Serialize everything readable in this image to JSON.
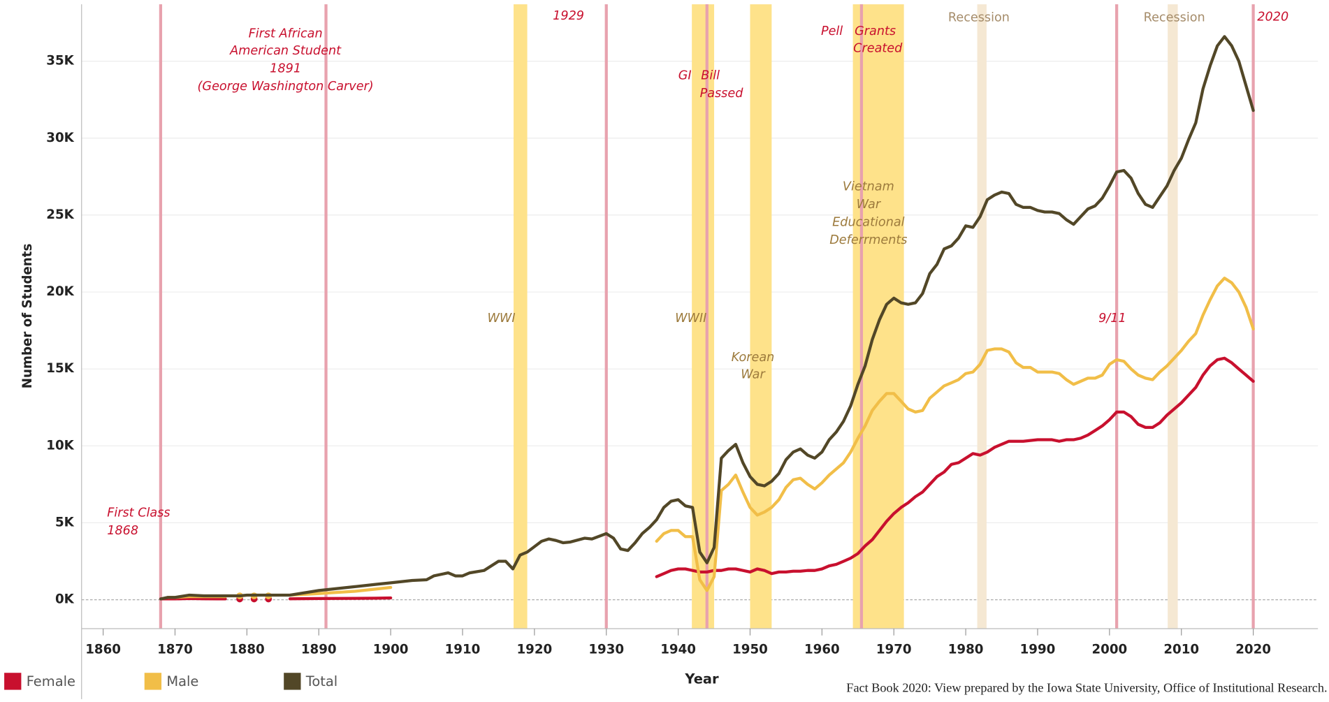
{
  "chart_data": {
    "type": "line",
    "y_label": "Number of Students",
    "x_label": "Year",
    "footer": "Fact Book 2020: View prepared by the Iowa State University, Office of Institutional Research.",
    "xlim": [
      1857,
      2029
    ],
    "xticks": [
      1860,
      1870,
      1880,
      1890,
      1900,
      1910,
      1920,
      1930,
      1940,
      1950,
      1960,
      1970,
      1980,
      1990,
      2000,
      2010,
      2020
    ],
    "ylim": [
      -1880,
      38700
    ],
    "yticks": [
      {
        "value": 0,
        "label": "0K"
      },
      {
        "value": 5000,
        "label": "5K"
      },
      {
        "value": 10000,
        "label": "10K"
      },
      {
        "value": 15000,
        "label": "15K"
      },
      {
        "value": 20000,
        "label": "20K"
      },
      {
        "value": 25000,
        "label": "25K"
      },
      {
        "value": 30000,
        "label": "30K"
      },
      {
        "value": 35000,
        "label": "35K"
      }
    ],
    "grid": true,
    "legend": "bottom-left",
    "x": [
      1868,
      1869,
      1870,
      1872,
      1874,
      1876,
      1877,
      1878,
      1879,
      1880,
      1881,
      1882,
      1883,
      1884,
      1885,
      1886,
      1890,
      1895,
      1898,
      1900,
      1903,
      1905,
      1906,
      1908,
      1909,
      1910,
      1911,
      1913,
      1915,
      1916,
      1917,
      1918,
      1919,
      1921,
      1922,
      1923,
      1924,
      1925,
      1927,
      1928,
      1930,
      1931,
      1932,
      1933,
      1934,
      1935,
      1936,
      1937,
      1938,
      1939,
      1940,
      1941,
      1942,
      1943,
      1944,
      1945,
      1946,
      1947,
      1948,
      1949,
      1950,
      1951,
      1952,
      1953,
      1954,
      1955,
      1956,
      1957,
      1958,
      1959,
      1960,
      1961,
      1962,
      1963,
      1964,
      1965,
      1966,
      1967,
      1968,
      1969,
      1970,
      1971,
      1972,
      1973,
      1974,
      1975,
      1976,
      1977,
      1978,
      1979,
      1980,
      1981,
      1982,
      1983,
      1984,
      1985,
      1986,
      1987,
      1988,
      1989,
      1990,
      1991,
      1992,
      1993,
      1994,
      1995,
      1996,
      1997,
      1998,
      1999,
      2000,
      2001,
      2002,
      2003,
      2004,
      2005,
      2006,
      2007,
      2008,
      2009,
      2010,
      2011,
      2012,
      2013,
      2014,
      2015,
      2016,
      2017,
      2018,
      2019,
      2020
    ],
    "series": [
      {
        "name": "Female",
        "color": "#c8102e",
        "values": [
          50,
          50,
          50,
          80,
          60,
          50,
          50,
          null,
          50,
          null,
          50,
          null,
          50,
          null,
          null,
          60,
          80,
          90,
          100,
          120,
          null,
          null,
          null,
          null,
          null,
          null,
          null,
          null,
          null,
          null,
          null,
          null,
          null,
          null,
          null,
          null,
          null,
          null,
          null,
          null,
          null,
          null,
          null,
          null,
          null,
          null,
          null,
          1500,
          1700,
          1900,
          2000,
          2000,
          1900,
          1800,
          1800,
          1900,
          1900,
          2000,
          2000,
          1900,
          1800,
          2000,
          1900,
          1700,
          1800,
          1800,
          1850,
          1850,
          1900,
          1900,
          2000,
          2200,
          2300,
          2500,
          2700,
          3000,
          3500,
          3900,
          4500,
          5100,
          5600,
          6000,
          6300,
          6700,
          7000,
          7500,
          8000,
          8300,
          8800,
          8900,
          9200,
          9500,
          9400,
          9600,
          9900,
          10100,
          10300,
          10300,
          10300,
          10350,
          10400,
          10400,
          10400,
          10300,
          10400,
          10400,
          10500,
          10700,
          11000,
          11300,
          11700,
          12200,
          12200,
          11900,
          11400,
          11200,
          11200,
          11500,
          12000,
          12400,
          12800,
          13300,
          13800,
          14600,
          15200,
          15600,
          15700,
          15400,
          15000,
          14600,
          14200
        ]
      },
      {
        "name": "Male",
        "color": "#f1be48",
        "values": [
          null,
          150,
          150,
          200,
          200,
          200,
          200,
          null,
          250,
          null,
          250,
          null,
          250,
          null,
          null,
          300,
          400,
          550,
          700,
          800,
          null,
          null,
          null,
          null,
          null,
          null,
          null,
          null,
          null,
          null,
          null,
          null,
          null,
          null,
          null,
          null,
          null,
          null,
          null,
          null,
          null,
          null,
          null,
          null,
          null,
          null,
          null,
          3800,
          4300,
          4500,
          4500,
          4100,
          4100,
          1300,
          600,
          1500,
          7100,
          7500,
          8100,
          7000,
          6000,
          5500,
          5700,
          6000,
          6500,
          7300,
          7800,
          7900,
          7500,
          7200,
          7600,
          8100,
          8500,
          8900,
          9600,
          10500,
          11300,
          12300,
          12900,
          13400,
          13400,
          12900,
          12400,
          12200,
          12300,
          13100,
          13500,
          13900,
          14100,
          14300,
          14700,
          14800,
          15300,
          16200,
          16300,
          16300,
          16100,
          15400,
          15100,
          15100,
          14800,
          14800,
          14800,
          14700,
          14300,
          14000,
          14200,
          14400,
          14400,
          14600,
          15300,
          15600,
          15500,
          15000,
          14600,
          14400,
          14300,
          14800,
          15200,
          15700,
          16200,
          16800,
          17300,
          18500,
          19500,
          20400,
          20900,
          20600,
          20000,
          19000,
          17600
        ]
      },
      {
        "name": "Total",
        "color": "#524727",
        "values": [
          50,
          150,
          150,
          300,
          250,
          250,
          250,
          250,
          250,
          300,
          300,
          300,
          300,
          300,
          300,
          300,
          600,
          850,
          1000,
          1100,
          1250,
          1300,
          1550,
          1750,
          1550,
          1550,
          1750,
          1900,
          2500,
          2500,
          2000,
          2900,
          3100,
          3800,
          3950,
          3850,
          3700,
          3750,
          4000,
          3950,
          4300,
          4000,
          3300,
          3200,
          3700,
          4300,
          4700,
          5200,
          6000,
          6400,
          6500,
          6100,
          6000,
          3100,
          2400,
          3400,
          9200,
          9700,
          10100,
          8900,
          8000,
          7500,
          7400,
          7700,
          8200,
          9100,
          9600,
          9800,
          9400,
          9200,
          9600,
          10400,
          10900,
          11600,
          12600,
          14000,
          15200,
          16900,
          18200,
          19200,
          19600,
          19300,
          19200,
          19300,
          19900,
          21200,
          21800,
          22800,
          23000,
          23500,
          24300,
          24200,
          24900,
          26000,
          26300,
          26500,
          26400,
          25700,
          25500,
          25500,
          25300,
          25200,
          25200,
          25100,
          24700,
          24400,
          24900,
          25400,
          25600,
          26100,
          26900,
          27800,
          27900,
          27400,
          26400,
          25700,
          25500,
          26200,
          26900,
          27900,
          28700,
          29900,
          31000,
          33200,
          34700,
          36000,
          36600,
          36000,
          35000,
          33400,
          31800
        ]
      }
    ],
    "bands": [
      {
        "x": [
          1917.1,
          1919
        ],
        "color": "#fee28a"
      },
      {
        "x": [
          1941.9,
          1945
        ],
        "color": "#fee28a"
      },
      {
        "x": [
          1950,
          1953
        ],
        "color": "#fee28a"
      },
      {
        "x": [
          1964.3,
          1971.4
        ],
        "color": "#fee28a"
      },
      {
        "x": [
          1981.6,
          1982.9
        ],
        "color": "#f5e8d3"
      },
      {
        "x": [
          2008.1,
          2009.5
        ],
        "color": "#f5e8d3"
      }
    ],
    "event_lines": {
      "x": [
        1868,
        1891,
        1930,
        1944,
        1965.5,
        2001,
        2020
      ],
      "color": "#e8a2ae"
    },
    "annotations": [
      {
        "lines": [
          "First Class",
          "1868"
        ],
        "color": "#c8102e",
        "italic": true
      },
      {
        "lines": [
          "First African",
          "American Student",
          "1891",
          "(George Washington Carver)"
        ],
        "color": "#c8102e",
        "italic": true
      },
      {
        "lines": [
          "WWI"
        ],
        "color": "#9c7a3c",
        "italic": true
      },
      {
        "lines": [
          "1929"
        ],
        "color": "#c8102e",
        "italic": true
      },
      {
        "lines": [
          "GI",
          "Bill",
          "Passed"
        ],
        "color": "#c8102e",
        "italic": true
      },
      {
        "lines": [
          "WWII"
        ],
        "color": "#9c7a3c",
        "italic": true
      },
      {
        "lines": [
          "Korean",
          "War"
        ],
        "color": "#9c7a3c",
        "italic": true
      },
      {
        "lines": [
          "Pell",
          "Grants",
          "Created"
        ],
        "color": "#c8102e",
        "italic": true
      },
      {
        "lines": [
          "Vietnam",
          "War",
          "Educational",
          "Deferrments"
        ],
        "color": "#9c7a3c",
        "italic": true
      },
      {
        "lines": [
          "Recession"
        ],
        "color": "#a58c6a",
        "italic": false
      },
      {
        "lines": [
          "Recession"
        ],
        "color": "#a58c6a",
        "italic": false
      },
      {
        "lines": [
          "9/11"
        ],
        "color": "#c8102e",
        "italic": true
      },
      {
        "lines": [
          "2020"
        ],
        "color": "#c8102e",
        "italic": true
      }
    ]
  }
}
